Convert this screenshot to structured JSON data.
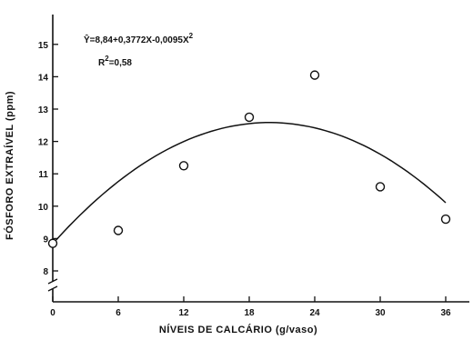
{
  "chart_data": {
    "type": "scatter",
    "xlabel": "NÍVEIS DE CALCÁRIO (g/vaso)",
    "ylabel": "FÓSFORO EXTRAÍVEL (ppm)",
    "xlim": [
      0,
      40
    ],
    "ylim": [
      7,
      16
    ],
    "y_axis_break": true,
    "x_ticks": [
      0,
      6,
      12,
      18,
      24,
      30,
      36
    ],
    "y_ticks": [
      8,
      9,
      10,
      11,
      12,
      13,
      14,
      15
    ],
    "x_tick_labels": [
      "0",
      "6",
      "12",
      "18",
      "24",
      "30",
      "36"
    ],
    "y_tick_labels": [
      "8",
      "9",
      "10",
      "11",
      "12",
      "13",
      "14",
      "15"
    ],
    "points": [
      {
        "x": 0,
        "y": 8.85
      },
      {
        "x": 6,
        "y": 9.25
      },
      {
        "x": 12,
        "y": 11.25
      },
      {
        "x": 18,
        "y": 12.75
      },
      {
        "x": 24,
        "y": 14.05
      },
      {
        "x": 30,
        "y": 10.6
      },
      {
        "x": 36,
        "y": 9.6
      }
    ],
    "fit": {
      "a": 8.84,
      "b": 0.3772,
      "c": -0.0095,
      "x_range": [
        0,
        36
      ]
    },
    "equation_text": "Ŷ=8,84+0,3772X-0,0095X",
    "equation_exponent": "2",
    "r2_text": "R",
    "r2_exponent": "2",
    "r2_value": "=0,58",
    "grid": false
  }
}
